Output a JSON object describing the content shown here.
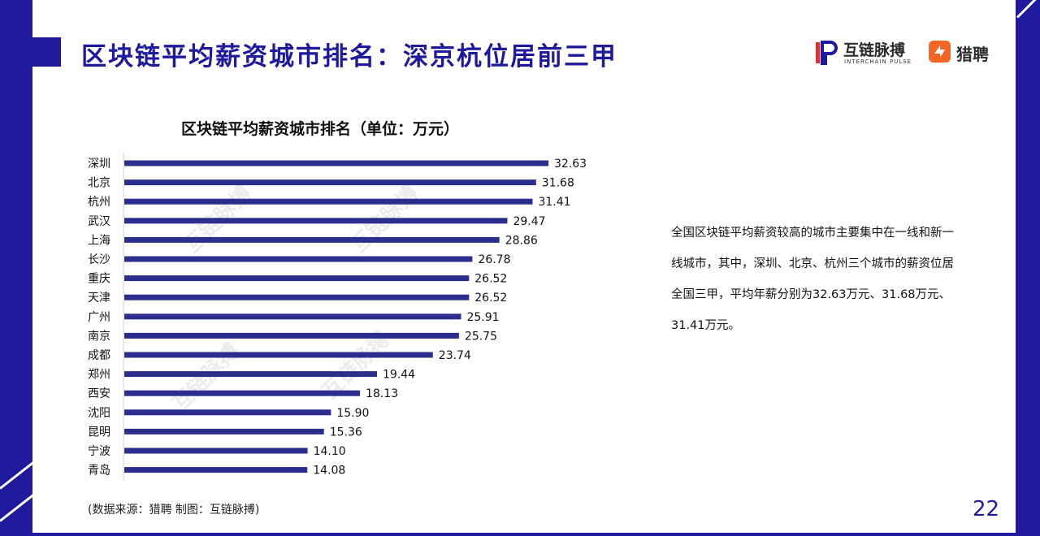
{
  "header": {
    "title": "区块链平均薪资城市排名：深京杭位居前三甲",
    "logo_primary": {
      "name": "互链脉搏",
      "subtitle": "INTERCHAIN PULSE",
      "icon": "interchain-logo-icon"
    },
    "logo_secondary": {
      "name": "猎聘",
      "icon": "liepin-logo-icon"
    }
  },
  "colors": {
    "brand": "#1f1a9c",
    "bar": "#2b2e8c",
    "accent_orange": "#f26522"
  },
  "watermark_text": "互链脉搏",
  "chart_data": {
    "type": "bar",
    "orientation": "horizontal",
    "title": "区块链平均薪资城市排名（单位：万元）",
    "categories": [
      "深圳",
      "北京",
      "杭州",
      "武汉",
      "上海",
      "长沙",
      "重庆",
      "天津",
      "广州",
      "南京",
      "成都",
      "郑州",
      "西安",
      "沈阳",
      "昆明",
      "宁波",
      "青岛"
    ],
    "values": [
      32.63,
      31.68,
      31.41,
      29.47,
      28.86,
      26.78,
      26.52,
      26.52,
      25.91,
      25.75,
      23.74,
      19.44,
      18.13,
      15.9,
      15.36,
      14.1,
      14.08
    ],
    "value_labels": [
      "32.63",
      "31.68",
      "31.41",
      "29.47",
      "28.86",
      "26.78",
      "26.52",
      "26.52",
      "25.91",
      "25.75",
      "23.74",
      "19.44",
      "18.13",
      "15.90",
      "15.36",
      "14.10",
      "14.08"
    ],
    "xlim": [
      0,
      40
    ],
    "grid": false,
    "legend": "none",
    "xlabel": "",
    "ylabel": ""
  },
  "description": "全国区块链平均薪资较高的城市主要集中在一线和新一线城市，其中，深圳、北京、杭州三个城市的薪资位居全国三甲，平均年薪分别为32.63万元、31.68万元、31.41万元。",
  "footer": {
    "source": "(数据来源：猎聘   制图：互链脉搏)",
    "page_number": "22"
  }
}
